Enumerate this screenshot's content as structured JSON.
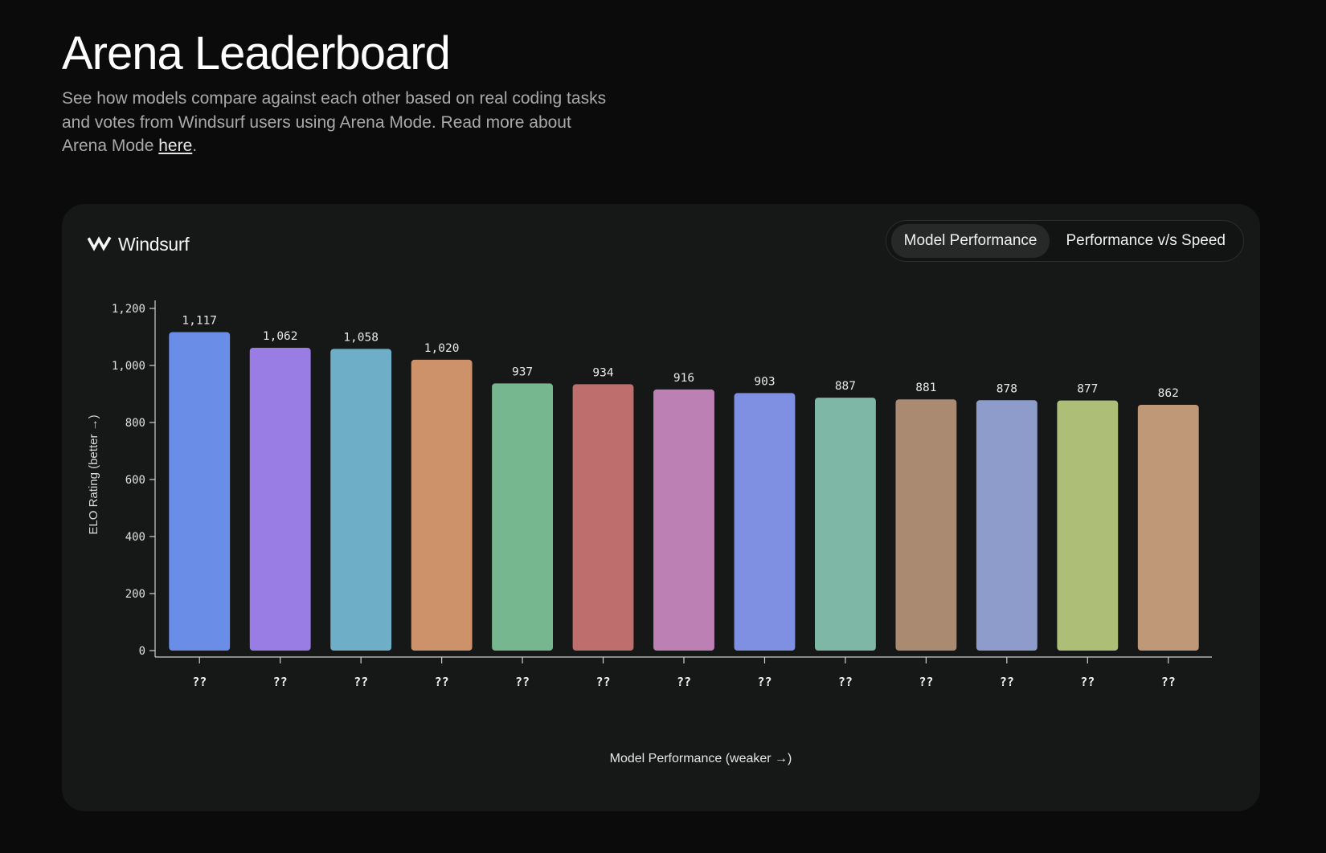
{
  "header": {
    "title": "Arena Leaderboard",
    "description_before": "See how models compare against each other based on real coding tasks and votes from Windsurf users using Arena Mode. Read more about Arena Mode ",
    "link_text": "here",
    "description_after": "."
  },
  "card": {
    "brand_name": "Windsurf",
    "tabs": [
      {
        "label": "Model Performance",
        "active": true
      },
      {
        "label": "Performance v/s Speed",
        "active": false
      }
    ]
  },
  "chart_data": {
    "type": "bar",
    "categories": [
      "??",
      "??",
      "??",
      "??",
      "??",
      "??",
      "??",
      "??",
      "??",
      "??",
      "??",
      "??",
      "??"
    ],
    "values": [
      1117,
      1062,
      1058,
      1020,
      937,
      934,
      916,
      903,
      887,
      881,
      878,
      877,
      862
    ],
    "data_labels": [
      "1,117",
      "1,062",
      "1,058",
      "1,020",
      "937",
      "934",
      "916",
      "903",
      "887",
      "881",
      "878",
      "877",
      "862"
    ],
    "colors": [
      "#6a8de8",
      "#9a7de4",
      "#6eaec7",
      "#cd9269",
      "#77b78f",
      "#bf6e6e",
      "#bd80b5",
      "#7f8fe1",
      "#7fb7a6",
      "#ab8a72",
      "#8e9ccb",
      "#adbf77",
      "#bf9877"
    ],
    "xlabel": "Model Performance (weaker →)",
    "ylabel": "ELO Rating (better →)",
    "ylim": [
      0,
      1200
    ],
    "yticks": [
      0,
      200,
      400,
      600,
      800,
      1000,
      1200
    ],
    "ytick_labels": [
      "0",
      "200",
      "400",
      "600",
      "800",
      "1,000",
      "1,200"
    ],
    "grid": false,
    "legend": "none"
  }
}
